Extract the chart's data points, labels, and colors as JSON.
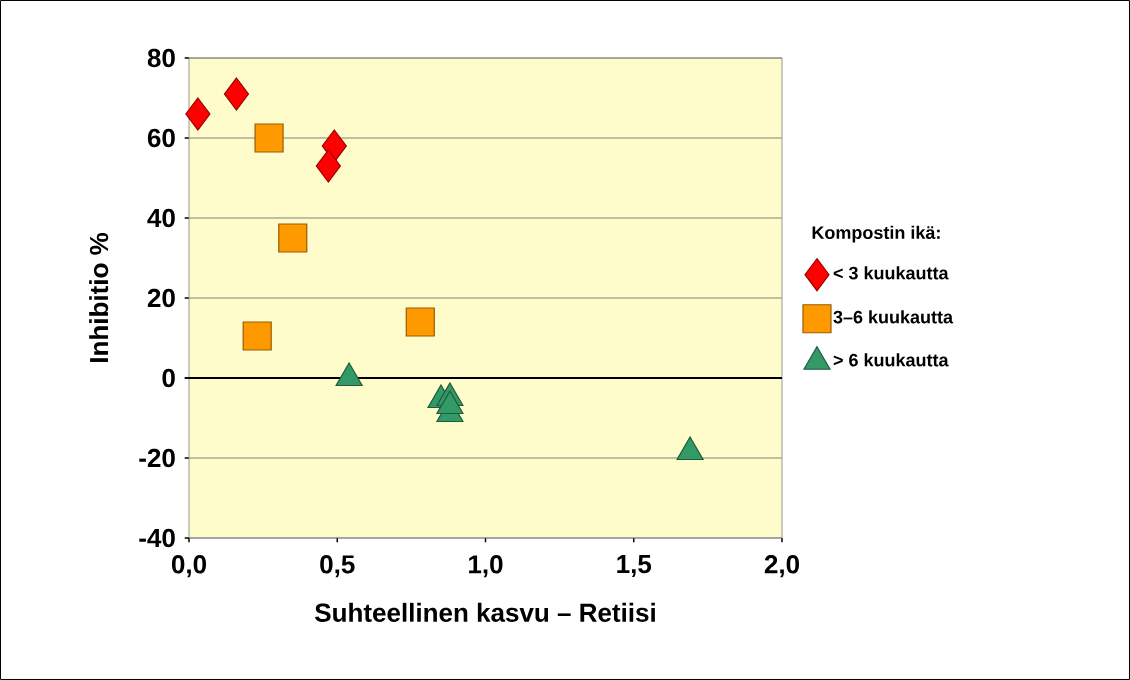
{
  "chart_data": {
    "type": "scatter",
    "xlabel": "Suhteellinen kasvu – Retiisi",
    "ylabel": "Inhibitio %",
    "legend_title": "Kompostin ikä:",
    "legend": "right",
    "grid": "y",
    "xlim": [
      0,
      2
    ],
    "ylim": [
      -40,
      80
    ],
    "xticks": [
      {
        "value": 0,
        "label": "0,0"
      },
      {
        "value": 0.5,
        "label": "0,5"
      },
      {
        "value": 1,
        "label": "1,0"
      },
      {
        "value": 1.5,
        "label": "1,5"
      },
      {
        "value": 2,
        "label": "2,0"
      }
    ],
    "yticks": [
      -40,
      -20,
      0,
      20,
      40,
      60,
      80
    ],
    "series": [
      {
        "name": "< 3 kuukautta",
        "color": "#ff0000",
        "marker": "diamond",
        "x": [
          0.03,
          0.16,
          0.49,
          0.47
        ],
        "values": [
          66,
          71,
          58,
          53
        ]
      },
      {
        "name": "3–6 kuukautta",
        "color": "#ff9900",
        "marker": "square",
        "x": [
          0.27,
          0.35,
          0.23,
          0.78
        ],
        "values": [
          60,
          35,
          10.5,
          14
        ]
      },
      {
        "name": "> 6 kuukautta",
        "color": "#339966",
        "marker": "triangle",
        "x": [
          0.54,
          0.85,
          0.88,
          0.88,
          0.88,
          1.69
        ],
        "values": [
          0,
          -5.5,
          -5,
          -9,
          -7,
          -18.5
        ]
      }
    ]
  }
}
